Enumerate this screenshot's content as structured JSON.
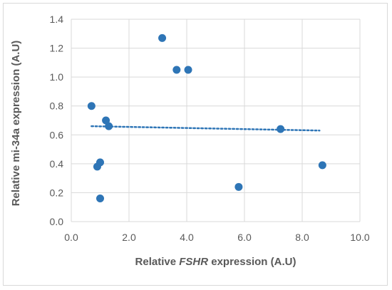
{
  "chart_data": {
    "type": "scatter",
    "xlabel": "Relative FSHR expression (A.U)",
    "xlabel_parts": {
      "prefix": "Relative ",
      "italic": "FSHR",
      "suffix": " expression (A.U)"
    },
    "ylabel": "Relative mi-34a expression (A.U)",
    "xlim": [
      0.0,
      10.0
    ],
    "ylim": [
      0.0,
      1.4
    ],
    "xticks": [
      "0.0",
      "2.0",
      "4.0",
      "6.0",
      "8.0",
      "10.0"
    ],
    "yticks": [
      "0.0",
      "0.2",
      "0.4",
      "0.6",
      "0.8",
      "1.0",
      "1.2",
      "1.4"
    ],
    "grid": "vertical and horizontal major gridlines",
    "legend": "none",
    "color": "#2e75b6",
    "points": [
      {
        "x": 0.7,
        "y": 0.8
      },
      {
        "x": 0.9,
        "y": 0.38
      },
      {
        "x": 1.0,
        "y": 0.41
      },
      {
        "x": 1.0,
        "y": 0.16
      },
      {
        "x": 1.2,
        "y": 0.7
      },
      {
        "x": 1.3,
        "y": 0.66
      },
      {
        "x": 3.15,
        "y": 1.27
      },
      {
        "x": 3.65,
        "y": 1.05
      },
      {
        "x": 4.05,
        "y": 1.05
      },
      {
        "x": 5.8,
        "y": 0.24
      },
      {
        "x": 7.25,
        "y": 0.64
      },
      {
        "x": 8.7,
        "y": 0.39
      }
    ],
    "trendline": {
      "style": "dotted linear",
      "x": [
        0.7,
        8.6
      ],
      "y": [
        0.66,
        0.63
      ]
    }
  }
}
